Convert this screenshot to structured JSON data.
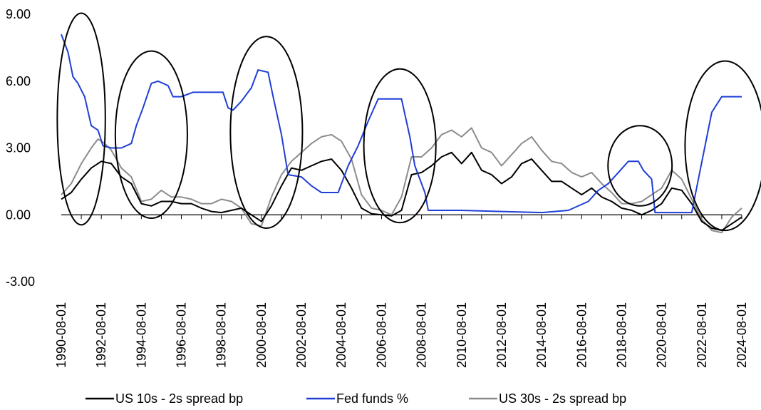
{
  "chart_data": {
    "type": "line",
    "title": "",
    "xlabel": "",
    "ylabel": "",
    "x_range": [
      "1990-08-01",
      "2024-08-01"
    ],
    "ylim": [
      -3,
      9
    ],
    "y_ticks": [
      "9.00",
      "6.00",
      "3.00",
      "0.00",
      "-3.00"
    ],
    "y_tick_values": [
      9,
      6,
      3,
      0,
      -3
    ],
    "x_ticks": [
      "1990-08-01",
      "1992-08-01",
      "1994-08-01",
      "1996-08-01",
      "1998-08-01",
      "2000-08-01",
      "2002-08-01",
      "2004-08-01",
      "2006-08-01",
      "2008-08-01",
      "2010-08-01",
      "2012-08-01",
      "2014-08-01",
      "2016-08-01",
      "2018-08-01",
      "2020-08-01",
      "2022-08-01",
      "2024-08-01"
    ],
    "legend_position": "bottom",
    "grid": false,
    "series": [
      {
        "name": "US 10s - 2s spread bp",
        "color": "#000000",
        "points": [
          [
            "1990-08-01",
            0.7
          ],
          [
            "1991-02-01",
            1.0
          ],
          [
            "1991-08-01",
            1.6
          ],
          [
            "1992-02-01",
            2.1
          ],
          [
            "1992-08-01",
            2.4
          ],
          [
            "1993-02-01",
            2.3
          ],
          [
            "1993-08-01",
            1.7
          ],
          [
            "1994-02-01",
            1.4
          ],
          [
            "1994-08-01",
            0.5
          ],
          [
            "1995-02-01",
            0.4
          ],
          [
            "1995-08-01",
            0.6
          ],
          [
            "1996-02-01",
            0.6
          ],
          [
            "1996-08-01",
            0.5
          ],
          [
            "1997-02-01",
            0.5
          ],
          [
            "1997-08-01",
            0.3
          ],
          [
            "1998-02-01",
            0.15
          ],
          [
            "1998-08-01",
            0.1
          ],
          [
            "1999-02-01",
            0.2
          ],
          [
            "1999-08-01",
            0.3
          ],
          [
            "2000-02-01",
            0.0
          ],
          [
            "2000-08-01",
            -0.3
          ],
          [
            "2001-02-01",
            0.4
          ],
          [
            "2001-08-01",
            1.3
          ],
          [
            "2002-02-01",
            2.1
          ],
          [
            "2002-08-01",
            2.0
          ],
          [
            "2003-02-01",
            2.2
          ],
          [
            "2003-08-01",
            2.4
          ],
          [
            "2004-02-01",
            2.5
          ],
          [
            "2004-08-01",
            2.0
          ],
          [
            "2005-02-01",
            1.2
          ],
          [
            "2005-08-01",
            0.3
          ],
          [
            "2006-02-01",
            0.05
          ],
          [
            "2006-08-01",
            0.0
          ],
          [
            "2007-02-01",
            -0.05
          ],
          [
            "2007-08-01",
            0.2
          ],
          [
            "2008-02-01",
            1.8
          ],
          [
            "2008-08-01",
            1.9
          ],
          [
            "2009-02-01",
            2.2
          ],
          [
            "2009-08-01",
            2.6
          ],
          [
            "2010-02-01",
            2.8
          ],
          [
            "2010-08-01",
            2.3
          ],
          [
            "2011-02-01",
            2.8
          ],
          [
            "2011-08-01",
            2.0
          ],
          [
            "2012-02-01",
            1.8
          ],
          [
            "2012-08-01",
            1.4
          ],
          [
            "2013-02-01",
            1.7
          ],
          [
            "2013-08-01",
            2.3
          ],
          [
            "2014-02-01",
            2.5
          ],
          [
            "2014-08-01",
            2.0
          ],
          [
            "2015-02-01",
            1.5
          ],
          [
            "2015-08-01",
            1.5
          ],
          [
            "2016-02-01",
            1.2
          ],
          [
            "2016-08-01",
            0.9
          ],
          [
            "2017-02-01",
            1.2
          ],
          [
            "2017-08-01",
            0.8
          ],
          [
            "2018-02-01",
            0.6
          ],
          [
            "2018-08-01",
            0.3
          ],
          [
            "2019-02-01",
            0.2
          ],
          [
            "2019-08-01",
            0.0
          ],
          [
            "2020-02-01",
            0.2
          ],
          [
            "2020-08-01",
            0.5
          ],
          [
            "2021-02-01",
            1.2
          ],
          [
            "2021-08-01",
            1.1
          ],
          [
            "2022-02-01",
            0.5
          ],
          [
            "2022-08-01",
            -0.3
          ],
          [
            "2023-02-01",
            -0.6
          ],
          [
            "2023-08-01",
            -0.7
          ],
          [
            "2024-02-01",
            -0.4
          ],
          [
            "2024-08-01",
            -0.1
          ]
        ]
      },
      {
        "name": "Fed funds %",
        "color": "#1f3fd6",
        "points": [
          [
            "1990-08-01",
            8.1
          ],
          [
            "1990-12-01",
            7.3
          ],
          [
            "1991-03-01",
            6.2
          ],
          [
            "1991-06-01",
            5.9
          ],
          [
            "1991-10-01",
            5.3
          ],
          [
            "1992-02-01",
            4.0
          ],
          [
            "1992-06-01",
            3.8
          ],
          [
            "1992-09-01",
            3.1
          ],
          [
            "1993-02-01",
            3.0
          ],
          [
            "1993-08-01",
            3.0
          ],
          [
            "1994-02-01",
            3.2
          ],
          [
            "1994-05-01",
            4.0
          ],
          [
            "1994-09-01",
            4.8
          ],
          [
            "1995-02-01",
            5.9
          ],
          [
            "1995-06-01",
            6.0
          ],
          [
            "1995-12-01",
            5.8
          ],
          [
            "1996-03-01",
            5.3
          ],
          [
            "1996-08-01",
            5.3
          ],
          [
            "1997-03-01",
            5.5
          ],
          [
            "1997-08-01",
            5.5
          ],
          [
            "1998-03-01",
            5.5
          ],
          [
            "1998-09-01",
            5.5
          ],
          [
            "1998-12-01",
            4.8
          ],
          [
            "1999-03-01",
            4.7
          ],
          [
            "1999-08-01",
            5.1
          ],
          [
            "2000-02-01",
            5.7
          ],
          [
            "2000-06-01",
            6.5
          ],
          [
            "2000-12-01",
            6.4
          ],
          [
            "2001-03-01",
            5.3
          ],
          [
            "2001-08-01",
            3.6
          ],
          [
            "2001-12-01",
            1.8
          ],
          [
            "2002-08-01",
            1.7
          ],
          [
            "2003-02-01",
            1.3
          ],
          [
            "2003-08-01",
            1.0
          ],
          [
            "2004-06-01",
            1.0
          ],
          [
            "2004-12-01",
            2.2
          ],
          [
            "2005-06-01",
            3.1
          ],
          [
            "2005-12-01",
            4.2
          ],
          [
            "2006-06-01",
            5.2
          ],
          [
            "2007-08-01",
            5.2
          ],
          [
            "2008-01-01",
            3.5
          ],
          [
            "2008-04-01",
            2.2
          ],
          [
            "2008-10-01",
            1.0
          ],
          [
            "2008-12-01",
            0.2
          ],
          [
            "2010-08-01",
            0.2
          ],
          [
            "2012-08-01",
            0.15
          ],
          [
            "2014-08-01",
            0.1
          ],
          [
            "2015-12-01",
            0.2
          ],
          [
            "2016-12-01",
            0.6
          ],
          [
            "2017-06-01",
            1.1
          ],
          [
            "2017-12-01",
            1.4
          ],
          [
            "2018-06-01",
            1.9
          ],
          [
            "2018-12-01",
            2.4
          ],
          [
            "2019-06-01",
            2.4
          ],
          [
            "2019-09-01",
            2.0
          ],
          [
            "2020-02-01",
            1.6
          ],
          [
            "2020-04-01",
            0.1
          ],
          [
            "2021-08-01",
            0.1
          ],
          [
            "2022-02-01",
            0.1
          ],
          [
            "2022-06-01",
            1.6
          ],
          [
            "2022-10-01",
            3.1
          ],
          [
            "2023-02-01",
            4.6
          ],
          [
            "2023-08-01",
            5.3
          ],
          [
            "2024-08-01",
            5.3
          ]
        ]
      },
      {
        "name": "US 30s - 2s spread bp",
        "color": "#8c8c8c",
        "points": [
          [
            "1990-08-01",
            0.9
          ],
          [
            "1991-02-01",
            1.4
          ],
          [
            "1991-08-01",
            2.3
          ],
          [
            "1992-02-01",
            3.0
          ],
          [
            "1992-06-01",
            3.4
          ],
          [
            "1992-10-01",
            3.2
          ],
          [
            "1993-02-01",
            2.9
          ],
          [
            "1993-08-01",
            2.1
          ],
          [
            "1994-02-01",
            1.7
          ],
          [
            "1994-08-01",
            0.6
          ],
          [
            "1995-02-01",
            0.7
          ],
          [
            "1995-08-01",
            1.1
          ],
          [
            "1996-02-01",
            0.8
          ],
          [
            "1996-08-01",
            0.8
          ],
          [
            "1997-02-01",
            0.7
          ],
          [
            "1997-08-01",
            0.5
          ],
          [
            "1998-02-01",
            0.5
          ],
          [
            "1998-08-01",
            0.7
          ],
          [
            "1999-02-01",
            0.6
          ],
          [
            "1999-08-01",
            0.3
          ],
          [
            "2000-02-01",
            -0.4
          ],
          [
            "2000-08-01",
            -0.5
          ],
          [
            "2001-02-01",
            0.8
          ],
          [
            "2001-08-01",
            1.8
          ],
          [
            "2002-02-01",
            2.4
          ],
          [
            "2002-08-01",
            2.8
          ],
          [
            "2003-02-01",
            3.2
          ],
          [
            "2003-08-01",
            3.5
          ],
          [
            "2004-02-01",
            3.6
          ],
          [
            "2004-08-01",
            3.3
          ],
          [
            "2005-02-01",
            2.5
          ],
          [
            "2005-08-01",
            0.9
          ],
          [
            "2006-02-01",
            0.3
          ],
          [
            "2006-08-01",
            0.2
          ],
          [
            "2007-02-01",
            0.0
          ],
          [
            "2007-08-01",
            0.8
          ],
          [
            "2008-02-01",
            2.6
          ],
          [
            "2008-08-01",
            2.6
          ],
          [
            "2009-02-01",
            3.0
          ],
          [
            "2009-08-01",
            3.6
          ],
          [
            "2010-02-01",
            3.8
          ],
          [
            "2010-08-01",
            3.5
          ],
          [
            "2011-02-01",
            3.9
          ],
          [
            "2011-08-01",
            3.0
          ],
          [
            "2012-02-01",
            2.8
          ],
          [
            "2012-08-01",
            2.2
          ],
          [
            "2013-02-01",
            2.7
          ],
          [
            "2013-08-01",
            3.2
          ],
          [
            "2014-02-01",
            3.5
          ],
          [
            "2014-08-01",
            2.9
          ],
          [
            "2015-02-01",
            2.4
          ],
          [
            "2015-08-01",
            2.3
          ],
          [
            "2016-02-01",
            1.9
          ],
          [
            "2016-08-01",
            1.7
          ],
          [
            "2017-02-01",
            1.9
          ],
          [
            "2017-08-01",
            1.4
          ],
          [
            "2018-02-01",
            1.0
          ],
          [
            "2018-08-01",
            0.5
          ],
          [
            "2019-02-01",
            0.5
          ],
          [
            "2019-08-01",
            0.6
          ],
          [
            "2020-02-01",
            0.9
          ],
          [
            "2020-08-01",
            1.2
          ],
          [
            "2021-02-01",
            2.0
          ],
          [
            "2021-08-01",
            1.6
          ],
          [
            "2022-02-01",
            0.7
          ],
          [
            "2022-08-01",
            -0.2
          ],
          [
            "2023-02-01",
            -0.7
          ],
          [
            "2023-08-01",
            -0.8
          ],
          [
            "2024-02-01",
            -0.1
          ],
          [
            "2024-08-01",
            0.3
          ]
        ]
      }
    ],
    "annotations": [
      {
        "type": "ellipse",
        "x_center": "1991-08-01",
        "y_center": 4.3,
        "x_half_years": 1.2,
        "y_half": 4.75,
        "color": "#000000"
      },
      {
        "type": "ellipse",
        "x_center": "1995-02-01",
        "y_center": 3.6,
        "x_half_years": 1.8,
        "y_half": 3.75,
        "color": "#000000"
      },
      {
        "type": "ellipse",
        "x_center": "2000-11-01",
        "y_center": 3.7,
        "x_half_years": 1.8,
        "y_half": 4.3,
        "color": "#000000"
      },
      {
        "type": "ellipse",
        "x_center": "2007-07-01",
        "y_center": 3.1,
        "x_half_years": 1.8,
        "y_half": 3.45,
        "color": "#000000"
      },
      {
        "type": "ellipse",
        "x_center": "2019-07-01",
        "y_center": 2.2,
        "x_half_years": 1.6,
        "y_half": 1.8,
        "color": "#000000"
      },
      {
        "type": "ellipse",
        "x_center": "2023-10-01",
        "y_center": 3.1,
        "x_half_years": 2.0,
        "y_half": 3.8,
        "color": "#000000"
      }
    ]
  }
}
